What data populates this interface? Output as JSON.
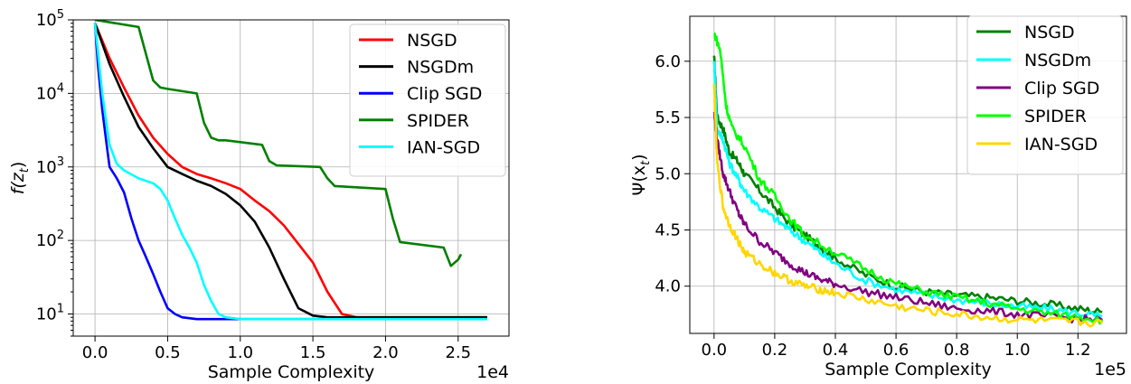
{
  "chart_data": [
    {
      "type": "line",
      "title": "",
      "xlabel": "Sample Complexity",
      "xscale_label": "1e4",
      "ylabel_base": "f(z",
      "ylabel_sub": "t",
      "ylabel_close": ")",
      "yscale": "log",
      "xlim": [
        -0.15,
        2.85
      ],
      "ylim": [
        5,
        100000
      ],
      "xticks": [
        0.0,
        0.5,
        1.0,
        1.5,
        2.0,
        2.5
      ],
      "xtick_labels": [
        "0.0",
        "0.5",
        "1.0",
        "1.5",
        "2.0",
        "2.5"
      ],
      "yticks": [
        10,
        100,
        1000,
        10000,
        100000
      ],
      "ytick_base": "10",
      "ytick_exponents": [
        "1",
        "2",
        "3",
        "4",
        "5"
      ],
      "grid": true,
      "legend_position": "top-right",
      "series": [
        {
          "name": "NSGD",
          "color": "#ff0000",
          "x": [
            0.0,
            0.1,
            0.2,
            0.3,
            0.4,
            0.5,
            0.6,
            0.7,
            0.8,
            0.9,
            1.0,
            1.1,
            1.2,
            1.3,
            1.4,
            1.5,
            1.6,
            1.7,
            1.8,
            2.0,
            2.2,
            2.4,
            2.6,
            2.7
          ],
          "y": [
            90000,
            30000,
            12000,
            5000,
            2500,
            1500,
            1000,
            800,
            700,
            600,
            500,
            350,
            250,
            160,
            90,
            50,
            20,
            10,
            9,
            9,
            9,
            9,
            9,
            9
          ]
        },
        {
          "name": "NSGDm",
          "color": "#000000",
          "x": [
            0.0,
            0.1,
            0.2,
            0.3,
            0.4,
            0.5,
            0.6,
            0.7,
            0.8,
            0.9,
            1.0,
            1.1,
            1.2,
            1.3,
            1.4,
            1.5,
            1.6,
            1.8,
            2.0,
            2.2,
            2.4,
            2.6,
            2.7
          ],
          "y": [
            90000,
            25000,
            9000,
            3500,
            1800,
            1000,
            800,
            650,
            550,
            430,
            300,
            180,
            80,
            30,
            12,
            9.5,
            9,
            9,
            9,
            9,
            9,
            9,
            9
          ]
        },
        {
          "name": "Clip SGD",
          "color": "#0000ff",
          "x": [
            0.0,
            0.02,
            0.05,
            0.08,
            0.1,
            0.15,
            0.2,
            0.25,
            0.3,
            0.35,
            0.4,
            0.45,
            0.5,
            0.55,
            0.6,
            0.7,
            0.8,
            1.0,
            1.5,
            2.0,
            2.5,
            2.7
          ],
          "y": [
            90000,
            25000,
            6000,
            2000,
            1000,
            700,
            450,
            200,
            100,
            60,
            35,
            20,
            12,
            10,
            9,
            8.5,
            8.5,
            8.5,
            8.5,
            8.5,
            8.5,
            8.5
          ]
        },
        {
          "name": "SPIDER",
          "color": "#008000",
          "x": [
            0.0,
            0.3,
            0.4,
            0.45,
            0.5,
            0.7,
            0.75,
            0.8,
            0.85,
            0.9,
            1.15,
            1.2,
            1.25,
            1.55,
            1.6,
            1.65,
            2.0,
            2.05,
            2.1,
            2.4,
            2.45,
            2.5,
            2.52
          ],
          "y": [
            100000,
            80000,
            15000,
            12000,
            11500,
            10000,
            4000,
            2500,
            2300,
            2300,
            2000,
            1200,
            1050,
            1000,
            700,
            550,
            500,
            200,
            95,
            80,
            45,
            55,
            65
          ]
        },
        {
          "name": "IAN-SGD",
          "color": "#00ffff",
          "x": [
            0.0,
            0.05,
            0.1,
            0.15,
            0.2,
            0.3,
            0.4,
            0.45,
            0.5,
            0.55,
            0.6,
            0.65,
            0.7,
            0.75,
            0.8,
            0.85,
            0.9,
            1.0,
            1.5,
            2.0,
            2.5,
            2.7
          ],
          "y": [
            90000,
            10000,
            2000,
            1100,
            900,
            700,
            600,
            500,
            350,
            200,
            120,
            80,
            50,
            25,
            15,
            10,
            9,
            8.5,
            8.5,
            8.5,
            8.5,
            8.5
          ]
        }
      ]
    },
    {
      "type": "line",
      "title": "",
      "xlabel": "Sample Complexity",
      "xscale_label": "1e5",
      "ylabel_base": "Ψ(x",
      "ylabel_sub": "t",
      "ylabel_close": ")",
      "yscale": "linear",
      "xlim": [
        -0.08,
        1.36
      ],
      "ylim": [
        3.58,
        6.4
      ],
      "xticks": [
        0.0,
        0.2,
        0.4,
        0.6,
        0.8,
        1.0,
        1.2
      ],
      "xtick_labels": [
        "0.0",
        "0.2",
        "0.4",
        "0.6",
        "0.8",
        "1.0",
        "1.2"
      ],
      "yticks": [
        4.0,
        4.5,
        5.0,
        5.5,
        6.0
      ],
      "ytick_labels": [
        "4.0",
        "4.5",
        "5.0",
        "5.5",
        "6.0"
      ],
      "grid": true,
      "legend_position": "top-right",
      "series": [
        {
          "name": "NSGD",
          "color": "#008000",
          "x": [
            0.0,
            0.01,
            0.03,
            0.05,
            0.08,
            0.1,
            0.15,
            0.2,
            0.25,
            0.3,
            0.35,
            0.4,
            0.5,
            0.6,
            0.7,
            0.8,
            0.9,
            1.0,
            1.1,
            1.2,
            1.28
          ],
          "y": [
            6.05,
            5.5,
            5.4,
            5.2,
            5.1,
            5.0,
            4.85,
            4.7,
            4.55,
            4.45,
            4.35,
            4.25,
            4.1,
            4.0,
            3.95,
            3.92,
            3.9,
            3.87,
            3.84,
            3.8,
            3.77
          ]
        },
        {
          "name": "NSGDm",
          "color": "#00ffff",
          "x": [
            0.0,
            0.01,
            0.03,
            0.05,
            0.08,
            0.1,
            0.15,
            0.2,
            0.25,
            0.3,
            0.35,
            0.4,
            0.5,
            0.6,
            0.7,
            0.8,
            0.9,
            1.0,
            1.1,
            1.2,
            1.28
          ],
          "y": [
            6.0,
            5.4,
            5.3,
            5.1,
            4.95,
            4.85,
            4.7,
            4.6,
            4.5,
            4.4,
            4.3,
            4.2,
            4.05,
            3.97,
            3.92,
            3.88,
            3.85,
            3.82,
            3.8,
            3.76,
            3.73
          ]
        },
        {
          "name": "Clip SGD",
          "color": "#800080",
          "x": [
            0.0,
            0.01,
            0.03,
            0.05,
            0.08,
            0.1,
            0.15,
            0.2,
            0.25,
            0.3,
            0.35,
            0.4,
            0.5,
            0.6,
            0.7,
            0.8,
            0.9,
            1.0,
            1.1,
            1.2,
            1.28
          ],
          "y": [
            5.55,
            5.3,
            5.0,
            4.85,
            4.65,
            4.55,
            4.4,
            4.3,
            4.2,
            4.12,
            4.06,
            4.02,
            3.95,
            3.9,
            3.85,
            3.8,
            3.78,
            3.75,
            3.73,
            3.71,
            3.7
          ]
        },
        {
          "name": "SPIDER",
          "color": "#00ff00",
          "x": [
            0.0,
            0.02,
            0.04,
            0.06,
            0.1,
            0.15,
            0.2,
            0.25,
            0.3,
            0.4,
            0.5,
            0.6,
            0.7,
            0.8,
            0.9,
            1.0,
            1.1,
            1.2,
            1.28
          ],
          "y": [
            6.25,
            6.1,
            5.6,
            5.4,
            5.25,
            4.95,
            4.8,
            4.6,
            4.45,
            4.3,
            4.15,
            4.02,
            3.95,
            3.9,
            3.85,
            3.8,
            3.76,
            3.73,
            3.7
          ]
        },
        {
          "name": "IAN-SGD",
          "color": "#ffd700",
          "x": [
            0.0,
            0.01,
            0.03,
            0.05,
            0.08,
            0.1,
            0.15,
            0.2,
            0.25,
            0.3,
            0.35,
            0.4,
            0.5,
            0.6,
            0.7,
            0.8,
            0.9,
            1.0,
            1.1,
            1.2,
            1.28
          ],
          "y": [
            5.8,
            5.1,
            4.7,
            4.55,
            4.4,
            4.3,
            4.2,
            4.12,
            4.05,
            4.0,
            3.97,
            3.94,
            3.88,
            3.82,
            3.78,
            3.75,
            3.72,
            3.7,
            3.69,
            3.68,
            3.67
          ]
        }
      ]
    }
  ]
}
